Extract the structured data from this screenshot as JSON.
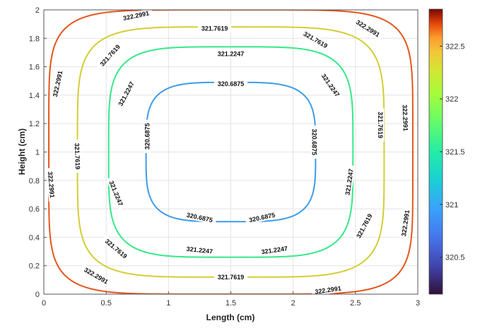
{
  "chart_data": {
    "type": "contour",
    "title": "",
    "xlabel": "Length (cm)",
    "ylabel": "Height (cm)",
    "xlim": [
      0,
      3
    ],
    "ylim": [
      0,
      2
    ],
    "xticks": [
      "0",
      "0.5",
      "1",
      "1.5",
      "2",
      "2.5",
      "3"
    ],
    "yticks": [
      "0",
      "0.2",
      "0.4",
      "0.6",
      "0.8",
      "1",
      "1.2",
      "1.4",
      "1.6",
      "1.8",
      "2"
    ],
    "grid": true,
    "colormap": "turbo",
    "colorbar": {
      "range": [
        320.15,
        322.85
      ],
      "ticks": [
        "320.5",
        "321",
        "321.5",
        "322",
        "322.5"
      ]
    },
    "contours": [
      {
        "level": 320.6875,
        "label": "320.6875",
        "color": "#3e9bea",
        "cx": 1.5,
        "cy": 1.0,
        "rx": 0.68,
        "ry": 0.49,
        "n": 4,
        "labels": [
          {
            "text": "320.6875",
            "x": 1.5,
            "y": 1.48,
            "angle": 0
          },
          {
            "text": "320.6875",
            "x": 0.83,
            "y": 1.11,
            "angle": -90
          },
          {
            "text": "320.6875",
            "x": 2.17,
            "y": 1.07,
            "angle": 90
          },
          {
            "text": "320.6875",
            "x": 1.25,
            "y": 0.54,
            "angle": 12
          },
          {
            "text": "320.6875",
            "x": 1.75,
            "y": 0.54,
            "angle": -12
          }
        ]
      },
      {
        "level": 321.2247,
        "label": "321.2247",
        "color": "#35e887",
        "cx": 1.5,
        "cy": 1.0,
        "rx": 0.98,
        "ry": 0.74,
        "n": 4.5,
        "labels": [
          {
            "text": "321.2247",
            "x": 1.5,
            "y": 1.69,
            "angle": 0
          },
          {
            "text": "321.2247",
            "x": 0.66,
            "y": 1.41,
            "angle": -62
          },
          {
            "text": "321.2247",
            "x": 2.3,
            "y": 1.47,
            "angle": 55
          },
          {
            "text": "321.2247",
            "x": 0.58,
            "y": 0.71,
            "angle": 68
          },
          {
            "text": "321.2247",
            "x": 2.45,
            "y": 0.79,
            "angle": -82
          },
          {
            "text": "321.2247",
            "x": 1.25,
            "y": 0.31,
            "angle": 6
          },
          {
            "text": "321.2247",
            "x": 1.85,
            "y": 0.31,
            "angle": -8
          }
        ]
      },
      {
        "level": 321.7619,
        "label": "321.7619",
        "color": "#d6cc34",
        "cx": 1.5,
        "cy": 1.0,
        "rx": 1.23,
        "ry": 0.88,
        "n": 5,
        "labels": [
          {
            "text": "321.7619",
            "x": 1.37,
            "y": 1.87,
            "angle": 0
          },
          {
            "text": "321.7619",
            "x": 0.53,
            "y": 1.68,
            "angle": -48
          },
          {
            "text": "321.7619",
            "x": 2.18,
            "y": 1.79,
            "angle": 30
          },
          {
            "text": "321.7619",
            "x": 0.27,
            "y": 0.97,
            "angle": 88
          },
          {
            "text": "321.7619",
            "x": 2.7,
            "y": 1.19,
            "angle": 90
          },
          {
            "text": "321.7619",
            "x": 0.58,
            "y": 0.32,
            "angle": 40
          },
          {
            "text": "321.7619",
            "x": 2.57,
            "y": 0.48,
            "angle": -62
          },
          {
            "text": "321.7619",
            "x": 1.5,
            "y": 0.12,
            "angle": 0
          }
        ]
      },
      {
        "level": 322.2991,
        "label": "322.2991",
        "color": "#e4561c",
        "cx": 1.5,
        "cy": 1.0,
        "rx": 1.46,
        "ry": 1.0,
        "n": 6,
        "labels": [
          {
            "text": "322.2991",
            "x": 0.74,
            "y": 1.96,
            "angle": -12
          },
          {
            "text": "322.2991",
            "x": 2.6,
            "y": 1.87,
            "angle": 32
          },
          {
            "text": "322.2991",
            "x": 0.11,
            "y": 1.48,
            "angle": -78
          },
          {
            "text": "322.2991",
            "x": 2.9,
            "y": 1.24,
            "angle": 88
          },
          {
            "text": "322.2991",
            "x": 0.06,
            "y": 0.77,
            "angle": 85
          },
          {
            "text": "322.2991",
            "x": 2.9,
            "y": 0.5,
            "angle": -82
          },
          {
            "text": "322.2991",
            "x": 0.42,
            "y": 0.13,
            "angle": 30
          },
          {
            "text": "322.2991",
            "x": 2.28,
            "y": 0.03,
            "angle": -8
          }
        ]
      }
    ]
  }
}
